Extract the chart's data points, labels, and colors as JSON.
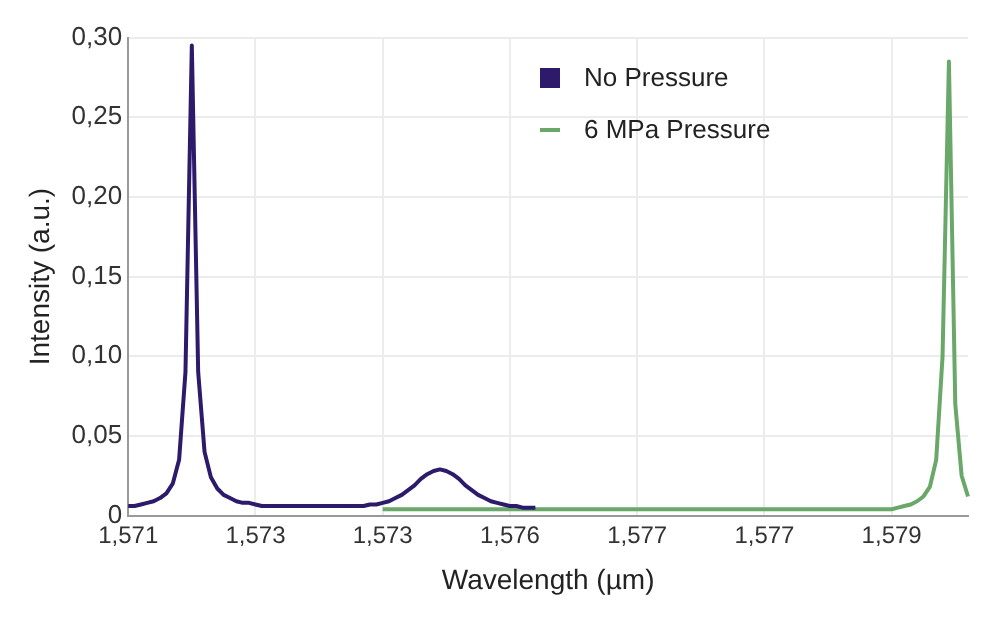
{
  "chart_data": {
    "type": "line",
    "xlabel": "Wavelength (µm)",
    "ylabel": "Intensity (a.u.)",
    "categories": [
      "1,571",
      null,
      null,
      null,
      null,
      null,
      null,
      null,
      null,
      null,
      null,
      null,
      null,
      null,
      null,
      null,
      null,
      null,
      null,
      null,
      "1,573",
      null,
      null,
      null,
      null,
      null,
      null,
      null,
      null,
      null,
      null,
      null,
      null,
      null,
      null,
      null,
      null,
      null,
      null,
      null,
      "1,573",
      null,
      null,
      null,
      null,
      null,
      null,
      null,
      null,
      null,
      null,
      null,
      null,
      null,
      null,
      null,
      null,
      null,
      null,
      null,
      "1,576",
      null,
      null,
      null,
      null,
      null,
      null,
      null,
      null,
      null,
      null,
      null,
      null,
      null,
      null,
      null,
      null,
      null,
      null,
      null,
      "1,577",
      null,
      null,
      null,
      null,
      null,
      null,
      null,
      null,
      null,
      null,
      null,
      null,
      null,
      null,
      null,
      null,
      null,
      null,
      null,
      "1,577",
      null,
      null,
      null,
      null,
      null,
      null,
      null,
      null,
      null,
      null,
      null,
      null,
      null,
      null,
      null,
      null,
      null,
      null,
      null,
      "1,579",
      null,
      null,
      null,
      null,
      null,
      null,
      null,
      null,
      null,
      null,
      null,
      null
    ],
    "ylim": [
      0,
      0.3
    ],
    "yticks": [
      {
        "value": 0,
        "label": "0"
      },
      {
        "value": 0.05,
        "label": "0,05"
      },
      {
        "value": 0.1,
        "label": "0,10"
      },
      {
        "value": 0.15,
        "label": "0,15"
      },
      {
        "value": 0.2,
        "label": "0,20"
      },
      {
        "value": 0.25,
        "label": "0,25"
      },
      {
        "value": 0.3,
        "label": "0,30"
      }
    ],
    "grid": true,
    "legend": "top right",
    "marker": "none",
    "line_style": "solid",
    "series": [
      {
        "name": "No Pressure",
        "color": "#2e1a6b",
        "values": [
          0.006,
          0.006,
          0.007,
          0.008,
          0.009,
          0.011,
          0.014,
          0.02,
          0.035,
          0.09,
          0.295,
          0.09,
          0.04,
          0.024,
          0.017,
          0.013,
          0.011,
          0.009,
          0.008,
          0.008,
          0.007,
          0.006,
          0.006,
          0.006,
          0.006,
          0.006,
          0.006,
          0.006,
          0.006,
          0.006,
          0.006,
          0.006,
          0.006,
          0.006,
          0.006,
          0.006,
          0.006,
          0.006,
          0.007,
          0.007,
          0.008,
          0.009,
          0.011,
          0.013,
          0.016,
          0.019,
          0.023,
          0.026,
          0.028,
          0.029,
          0.028,
          0.026,
          0.023,
          0.019,
          0.016,
          0.013,
          0.011,
          0.009,
          0.008,
          0.007,
          0.006,
          0.006,
          0.005,
          0.005,
          0.005,
          null,
          null,
          null,
          null,
          null,
          null,
          null,
          null,
          null,
          null,
          null,
          null,
          null,
          null,
          null,
          null,
          null,
          null,
          null,
          null,
          null,
          null,
          null,
          null,
          null,
          null,
          null,
          null,
          null,
          null,
          null,
          null,
          null,
          null,
          null,
          null,
          null,
          null,
          null,
          null,
          null,
          null,
          null,
          null,
          null,
          null,
          null,
          null,
          null,
          null,
          null,
          null,
          null,
          null,
          null,
          null,
          null,
          null,
          null,
          null,
          null,
          null,
          null,
          null,
          null,
          null,
          null,
          null
        ]
      },
      {
        "name": "6 MPa Pressure",
        "color": "#6aa86a",
        "values": [
          null,
          null,
          null,
          null,
          null,
          null,
          null,
          null,
          null,
          null,
          null,
          null,
          null,
          null,
          null,
          null,
          null,
          null,
          null,
          null,
          null,
          null,
          null,
          null,
          null,
          null,
          null,
          null,
          null,
          null,
          null,
          null,
          null,
          null,
          null,
          null,
          null,
          null,
          null,
          null,
          0.004,
          0.004,
          0.004,
          0.004,
          0.004,
          0.004,
          0.004,
          0.004,
          0.004,
          0.004,
          0.004,
          0.004,
          0.004,
          0.004,
          0.004,
          0.004,
          0.004,
          0.004,
          0.004,
          0.004,
          0.004,
          0.004,
          0.004,
          0.004,
          0.004,
          0.004,
          0.004,
          0.004,
          0.004,
          0.004,
          0.004,
          0.004,
          0.004,
          0.004,
          0.004,
          0.004,
          0.004,
          0.004,
          0.004,
          0.004,
          0.004,
          0.004,
          0.004,
          0.004,
          0.004,
          0.004,
          0.004,
          0.004,
          0.004,
          0.004,
          0.004,
          0.004,
          0.004,
          0.004,
          0.004,
          0.004,
          0.004,
          0.004,
          0.004,
          0.004,
          0.004,
          0.004,
          0.004,
          0.004,
          0.004,
          0.004,
          0.004,
          0.004,
          0.004,
          0.004,
          0.004,
          0.004,
          0.004,
          0.004,
          0.004,
          0.004,
          0.004,
          0.004,
          0.004,
          0.004,
          0.004,
          0.005,
          0.006,
          0.007,
          0.009,
          0.012,
          0.018,
          0.035,
          0.1,
          0.285,
          0.07,
          0.025,
          0.012
        ]
      }
    ]
  }
}
